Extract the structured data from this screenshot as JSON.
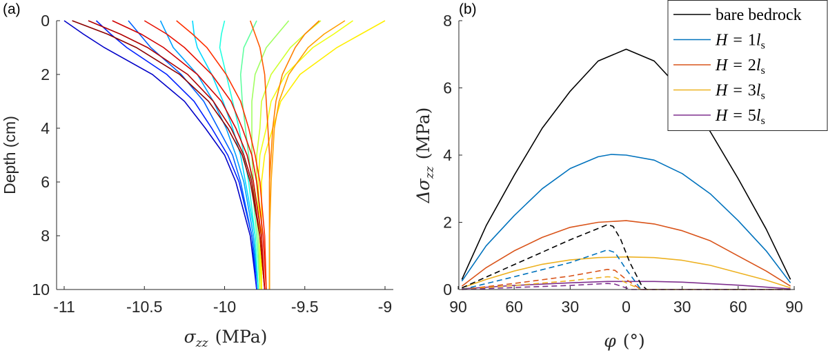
{
  "chart_data": [
    {
      "type": "line",
      "panel_label": "(a)",
      "xlabel": {
        "symbol": "σ",
        "sub": "zz",
        "unit": "(MPa)"
      },
      "ylabel": "Depth (cm)",
      "xlim": [
        -11.05,
        -8.95
      ],
      "ylim": [
        0,
        10
      ],
      "y_reversed": true,
      "xticks": [
        -11,
        -10.5,
        -10,
        -9.5,
        -9
      ],
      "xtick_labels": [
        "-11",
        "-10.5",
        "-10",
        "-9.5",
        "-9"
      ],
      "yticks": [
        0,
        2,
        4,
        6,
        8,
        10
      ],
      "ytick_labels": [
        "0",
        "2",
        "4",
        "6",
        "8",
        "10"
      ],
      "grid": false,
      "depth": [
        0,
        0.5,
        1,
        2,
        3,
        4,
        5,
        6,
        8,
        10
      ],
      "series": [
        {
          "color": "#0000c8",
          "values": [
            -11,
            -10.88,
            -10.75,
            -10.45,
            -10.25,
            -10.12,
            -10.0,
            -9.93,
            -9.84,
            -9.8
          ]
        },
        {
          "color": "#0020ff",
          "values": [
            -10.8,
            -10.71,
            -10.61,
            -10.36,
            -10.19,
            -10.08,
            -9.98,
            -9.91,
            -9.83,
            -9.8
          ]
        },
        {
          "color": "#0060ff",
          "values": [
            -10.6,
            -10.53,
            -10.46,
            -10.27,
            -10.13,
            -10.04,
            -9.95,
            -9.9,
            -9.83,
            -9.79
          ]
        },
        {
          "color": "#00a0ff",
          "values": [
            -10.4,
            -10.36,
            -10.32,
            -10.17,
            -10.07,
            -9.99,
            -9.93,
            -9.88,
            -9.82,
            -9.79
          ]
        },
        {
          "color": "#00d8ff",
          "values": [
            -10.2,
            -10.19,
            -10.17,
            -10.08,
            -10.01,
            -9.95,
            -9.9,
            -9.87,
            -9.81,
            -9.79
          ]
        },
        {
          "color": "#20ffe0",
          "values": [
            -10.0,
            -10.02,
            -10.03,
            -9.99,
            -9.95,
            -9.91,
            -9.88,
            -9.85,
            -9.81,
            -9.79
          ]
        },
        {
          "color": "#60ffa0",
          "values": [
            -9.8,
            -9.84,
            -9.88,
            -9.9,
            -9.89,
            -9.87,
            -9.85,
            -9.83,
            -9.8,
            -9.78
          ]
        },
        {
          "color": "#a0ff60",
          "values": [
            -9.6,
            -9.67,
            -9.74,
            -9.81,
            -9.83,
            -9.83,
            -9.83,
            -9.82,
            -9.79,
            -9.78
          ]
        },
        {
          "color": "#d0ff30",
          "values": [
            -9.4,
            -9.5,
            -9.59,
            -9.71,
            -9.77,
            -9.78,
            -9.8,
            -9.8,
            -9.78,
            -9.78
          ]
        },
        {
          "color": "#f0ff10",
          "values": [
            -9.2,
            -9.32,
            -9.45,
            -9.62,
            -9.71,
            -9.74,
            -9.78,
            -9.79,
            -9.78,
            -9.77
          ]
        },
        {
          "color": "#ffee00",
          "values": [
            -9.0,
            -9.15,
            -9.3,
            -9.53,
            -9.65,
            -9.7,
            -9.75,
            -9.77,
            -9.77,
            -9.77
          ]
        },
        {
          "color": "#8b0000",
          "values": [
            -10.95,
            -10.73,
            -10.55,
            -10.28,
            -10.1,
            -9.98,
            -9.89,
            -9.84,
            -9.78,
            -9.75
          ]
        },
        {
          "color": "#b00000",
          "values": [
            -10.85,
            -10.65,
            -10.48,
            -10.23,
            -10.07,
            -9.96,
            -9.88,
            -9.83,
            -9.78,
            -9.75
          ]
        },
        {
          "color": "#d00000",
          "values": [
            -10.7,
            -10.52,
            -10.38,
            -10.17,
            -10.02,
            -9.93,
            -9.86,
            -9.82,
            -9.77,
            -9.75
          ]
        },
        {
          "color": "#e81000",
          "values": [
            -10.5,
            -10.36,
            -10.25,
            -10.08,
            -9.96,
            -9.89,
            -9.83,
            -9.8,
            -9.76,
            -9.74
          ]
        },
        {
          "color": "#ff3000",
          "values": [
            -10.3,
            -10.2,
            -10.11,
            -9.99,
            -9.9,
            -9.85,
            -9.81,
            -9.78,
            -9.75,
            -9.74
          ]
        },
        {
          "color": "#ff5a00",
          "values": [
            -9.84,
            -9.81,
            -9.78,
            -9.75,
            -9.74,
            -9.73,
            -9.72,
            -9.72,
            -9.72,
            -9.72
          ]
        },
        {
          "color": "#ff8000",
          "values": [
            -9.41,
            -9.5,
            -9.56,
            -9.64,
            -9.68,
            -9.7,
            -9.71,
            -9.72,
            -9.72,
            -9.72
          ]
        },
        {
          "color": "#ffa000",
          "values": [
            -9.25,
            -9.38,
            -9.48,
            -9.6,
            -9.66,
            -9.69,
            -9.7,
            -9.71,
            -9.72,
            -9.72
          ]
        }
      ]
    },
    {
      "type": "line",
      "panel_label": "(b)",
      "xlabel": {
        "symbol": "φ",
        "unit": "(°)"
      },
      "ylabel": {
        "symbol": "Δσ",
        "sub": "zz",
        "unit": "(MPa)"
      },
      "xlim": [
        -90,
        90
      ],
      "ylim": [
        0,
        8
      ],
      "xticks": [
        -90,
        -60,
        -30,
        0,
        30,
        60,
        90
      ],
      "xtick_labels": [
        "90",
        "60",
        "30",
        "0",
        "30",
        "60",
        "90"
      ],
      "yticks": [
        0,
        2,
        4,
        6,
        8
      ],
      "ytick_labels": [
        "0",
        "2",
        "4",
        "6",
        "8"
      ],
      "grid": false,
      "legend_position": "top-right",
      "legend": [
        {
          "text": "bare bedrock",
          "color": "#000000"
        },
        {
          "lhs": "H",
          "eq": "=",
          "num": "1",
          "sym": "l",
          "sub": "s",
          "color": "#0072BD"
        },
        {
          "lhs": "H",
          "eq": "=",
          "num": "2",
          "sym": "l",
          "sub": "s",
          "color": "#D95319"
        },
        {
          "lhs": "H",
          "eq": "=",
          "num": "3",
          "sym": "l",
          "sub": "s",
          "color": "#EDB120"
        },
        {
          "lhs": "H",
          "eq": "=",
          "num": "5",
          "sym": "l",
          "sub": "s",
          "color": "#7E2F8E"
        }
      ],
      "series": [
        {
          "color": "#000000",
          "style": "solid",
          "x": [
            -88,
            -75,
            -60,
            -45,
            -30,
            -15,
            0,
            15,
            30,
            45,
            60,
            75,
            88
          ],
          "y": [
            0.3,
            1.9,
            3.4,
            4.8,
            5.9,
            6.8,
            7.15,
            6.8,
            5.9,
            4.7,
            3.3,
            1.8,
            0.3
          ]
        },
        {
          "color": "#0072BD",
          "style": "solid",
          "x": [
            -88,
            -75,
            -60,
            -45,
            -30,
            -15,
            -8,
            0,
            15,
            30,
            45,
            60,
            75,
            88
          ],
          "y": [
            0.25,
            1.3,
            2.2,
            3.0,
            3.6,
            3.95,
            4.02,
            4.0,
            3.85,
            3.45,
            2.85,
            2.05,
            1.15,
            0.2
          ]
        },
        {
          "color": "#D95319",
          "style": "solid",
          "x": [
            -88,
            -75,
            -60,
            -45,
            -30,
            -15,
            0,
            15,
            30,
            45,
            60,
            75,
            88
          ],
          "y": [
            0.1,
            0.65,
            1.15,
            1.55,
            1.85,
            2.0,
            2.05,
            1.95,
            1.75,
            1.45,
            1.0,
            0.55,
            0.1
          ]
        },
        {
          "color": "#EDB120",
          "style": "solid",
          "x": [
            -88,
            -75,
            -60,
            -45,
            -30,
            -15,
            0,
            15,
            30,
            45,
            60,
            75,
            88
          ],
          "y": [
            0.05,
            0.3,
            0.55,
            0.75,
            0.88,
            0.95,
            0.97,
            0.95,
            0.87,
            0.72,
            0.5,
            0.28,
            0.05
          ]
        },
        {
          "color": "#7E2F8E",
          "style": "solid",
          "x": [
            -88,
            -60,
            -30,
            -10,
            15,
            30,
            60,
            88
          ],
          "y": [
            0.02,
            0.12,
            0.2,
            0.24,
            0.24,
            0.22,
            0.13,
            0.02
          ]
        },
        {
          "color": "#000000",
          "style": "dashed",
          "x": [
            -88,
            -60,
            -30,
            -10,
            -7,
            -3,
            2,
            8,
            11,
            88
          ],
          "y": [
            0.05,
            0.74,
            1.48,
            1.93,
            1.88,
            1.5,
            0.8,
            0.15,
            0,
            0
          ]
        },
        {
          "color": "#0072BD",
          "style": "dashed",
          "x": [
            -88,
            -60,
            -30,
            -10,
            -6,
            0,
            8,
            88
          ],
          "y": [
            0.0,
            0.38,
            0.8,
            1.18,
            1.1,
            0.6,
            0,
            0
          ]
        },
        {
          "color": "#D95319",
          "style": "dashed",
          "x": [
            -88,
            -60,
            -30,
            -10,
            -6,
            0,
            8,
            88
          ],
          "y": [
            0.0,
            0.18,
            0.4,
            0.6,
            0.57,
            0.3,
            0,
            0
          ]
        },
        {
          "color": "#EDB120",
          "style": "dashed",
          "x": [
            -88,
            -60,
            -30,
            -10,
            -6,
            0,
            8,
            88
          ],
          "y": [
            0.0,
            0.12,
            0.26,
            0.38,
            0.36,
            0.2,
            0,
            0
          ]
        },
        {
          "color": "#7E2F8E",
          "style": "dashed",
          "x": [
            -88,
            -60,
            -30,
            -10,
            -6,
            0,
            3,
            88
          ],
          "y": [
            0.0,
            0.06,
            0.12,
            0.18,
            0.16,
            0.05,
            0,
            0
          ]
        }
      ]
    }
  ]
}
